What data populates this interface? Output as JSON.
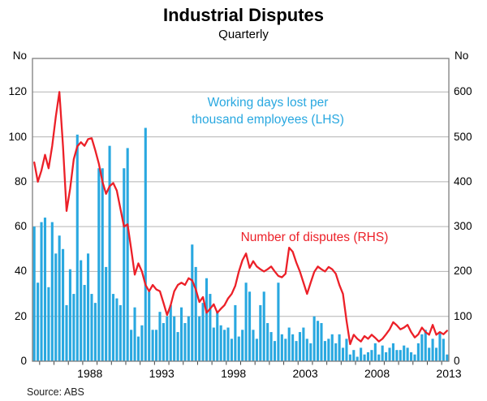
{
  "page": {
    "title": "Industrial Disputes",
    "subtitle": "Quarterly",
    "source": "Source: ABS"
  },
  "axes": {
    "left_unit": "No",
    "right_unit": "No",
    "left_ticks": [
      0,
      20,
      40,
      60,
      80,
      100,
      120
    ],
    "right_ticks": [
      0,
      100,
      200,
      300,
      400,
      500,
      600
    ],
    "x_labels": [
      1988,
      1993,
      1998,
      2003,
      2008,
      2013
    ]
  },
  "legend": {
    "lhs_line1": "Working days lost per",
    "lhs_line2": "thousand employees (LHS)",
    "rhs": "Number of disputes (RHS)"
  },
  "colors": {
    "bars": "#29A8E0",
    "line": "#EC2028",
    "grid": "#B3B3B3",
    "frame": "#7E7E7E",
    "tick": "#444444"
  },
  "chart_data": {
    "type": "bar",
    "title": "Industrial Disputes",
    "subtitle": "Quarterly",
    "frequency": "quarterly",
    "x_start": "1984Q3",
    "x_end": "2013Q2",
    "n_points": 116,
    "x_year_ticks_every": 1,
    "x_labeled_years": [
      1988,
      1993,
      1998,
      2003,
      2008,
      2013
    ],
    "grid": true,
    "axes": {
      "left": {
        "unit": "No",
        "ticks": [
          0,
          20,
          40,
          60,
          80,
          100,
          120
        ],
        "range": [
          0,
          134.5
        ]
      },
      "right": {
        "unit": "No",
        "ticks": [
          0,
          100,
          200,
          300,
          400,
          500,
          600
        ],
        "range": [
          0,
          672.5
        ]
      }
    },
    "series": [
      {
        "name": "Working days lost per thousand employees (LHS)",
        "type": "bar",
        "axis": "left",
        "color": "#29A8E0",
        "values": [
          60,
          35,
          62,
          64,
          33,
          62,
          48,
          56,
          50,
          25,
          41,
          30,
          101,
          45,
          34,
          48,
          30,
          26,
          86,
          86,
          42,
          96,
          30,
          28,
          25,
          86,
          95,
          14,
          24,
          11,
          16,
          104,
          31,
          14,
          14,
          22,
          17,
          20,
          25,
          20,
          13,
          24,
          17,
          20,
          52,
          42,
          20,
          26,
          37,
          30,
          15,
          22,
          16,
          14,
          15,
          10,
          25,
          11,
          14,
          35,
          31,
          14,
          10,
          25,
          31,
          17,
          13,
          9,
          35,
          12,
          10,
          15,
          12,
          9,
          13,
          15,
          10,
          8,
          20,
          18,
          17,
          9,
          10,
          12,
          8,
          12,
          6,
          10,
          3,
          5,
          2,
          6,
          3,
          4,
          5,
          8,
          3,
          7,
          4,
          6,
          8,
          5,
          5,
          7,
          6,
          4,
          3,
          8,
          12,
          14,
          6,
          10,
          6,
          13,
          10,
          3
        ]
      },
      {
        "name": "Number of disputes (RHS)",
        "type": "line",
        "axis": "right",
        "color": "#EC2028",
        "values": [
          443,
          400,
          425,
          460,
          430,
          480,
          545,
          600,
          480,
          335,
          385,
          450,
          479,
          488,
          480,
          495,
          497,
          470,
          440,
          400,
          373,
          390,
          397,
          380,
          340,
          300,
          305,
          250,
          193,
          218,
          200,
          170,
          156,
          170,
          160,
          156,
          130,
          103,
          125,
          156,
          170,
          175,
          170,
          185,
          180,
          160,
          132,
          143,
          108,
          117,
          127,
          108,
          117,
          125,
          140,
          150,
          168,
          200,
          225,
          240,
          208,
          223,
          211,
          205,
          200,
          205,
          211,
          200,
          190,
          187,
          195,
          253,
          244,
          220,
          200,
          175,
          150,
          175,
          199,
          211,
          205,
          200,
          210,
          205,
          195,
          170,
          150,
          90,
          38,
          59,
          50,
          44,
          56,
          50,
          59,
          52,
          44,
          50,
          60,
          71,
          87,
          80,
          71,
          75,
          81,
          65,
          53,
          60,
          75,
          65,
          59,
          81,
          59,
          65,
          60,
          68
        ]
      }
    ]
  }
}
